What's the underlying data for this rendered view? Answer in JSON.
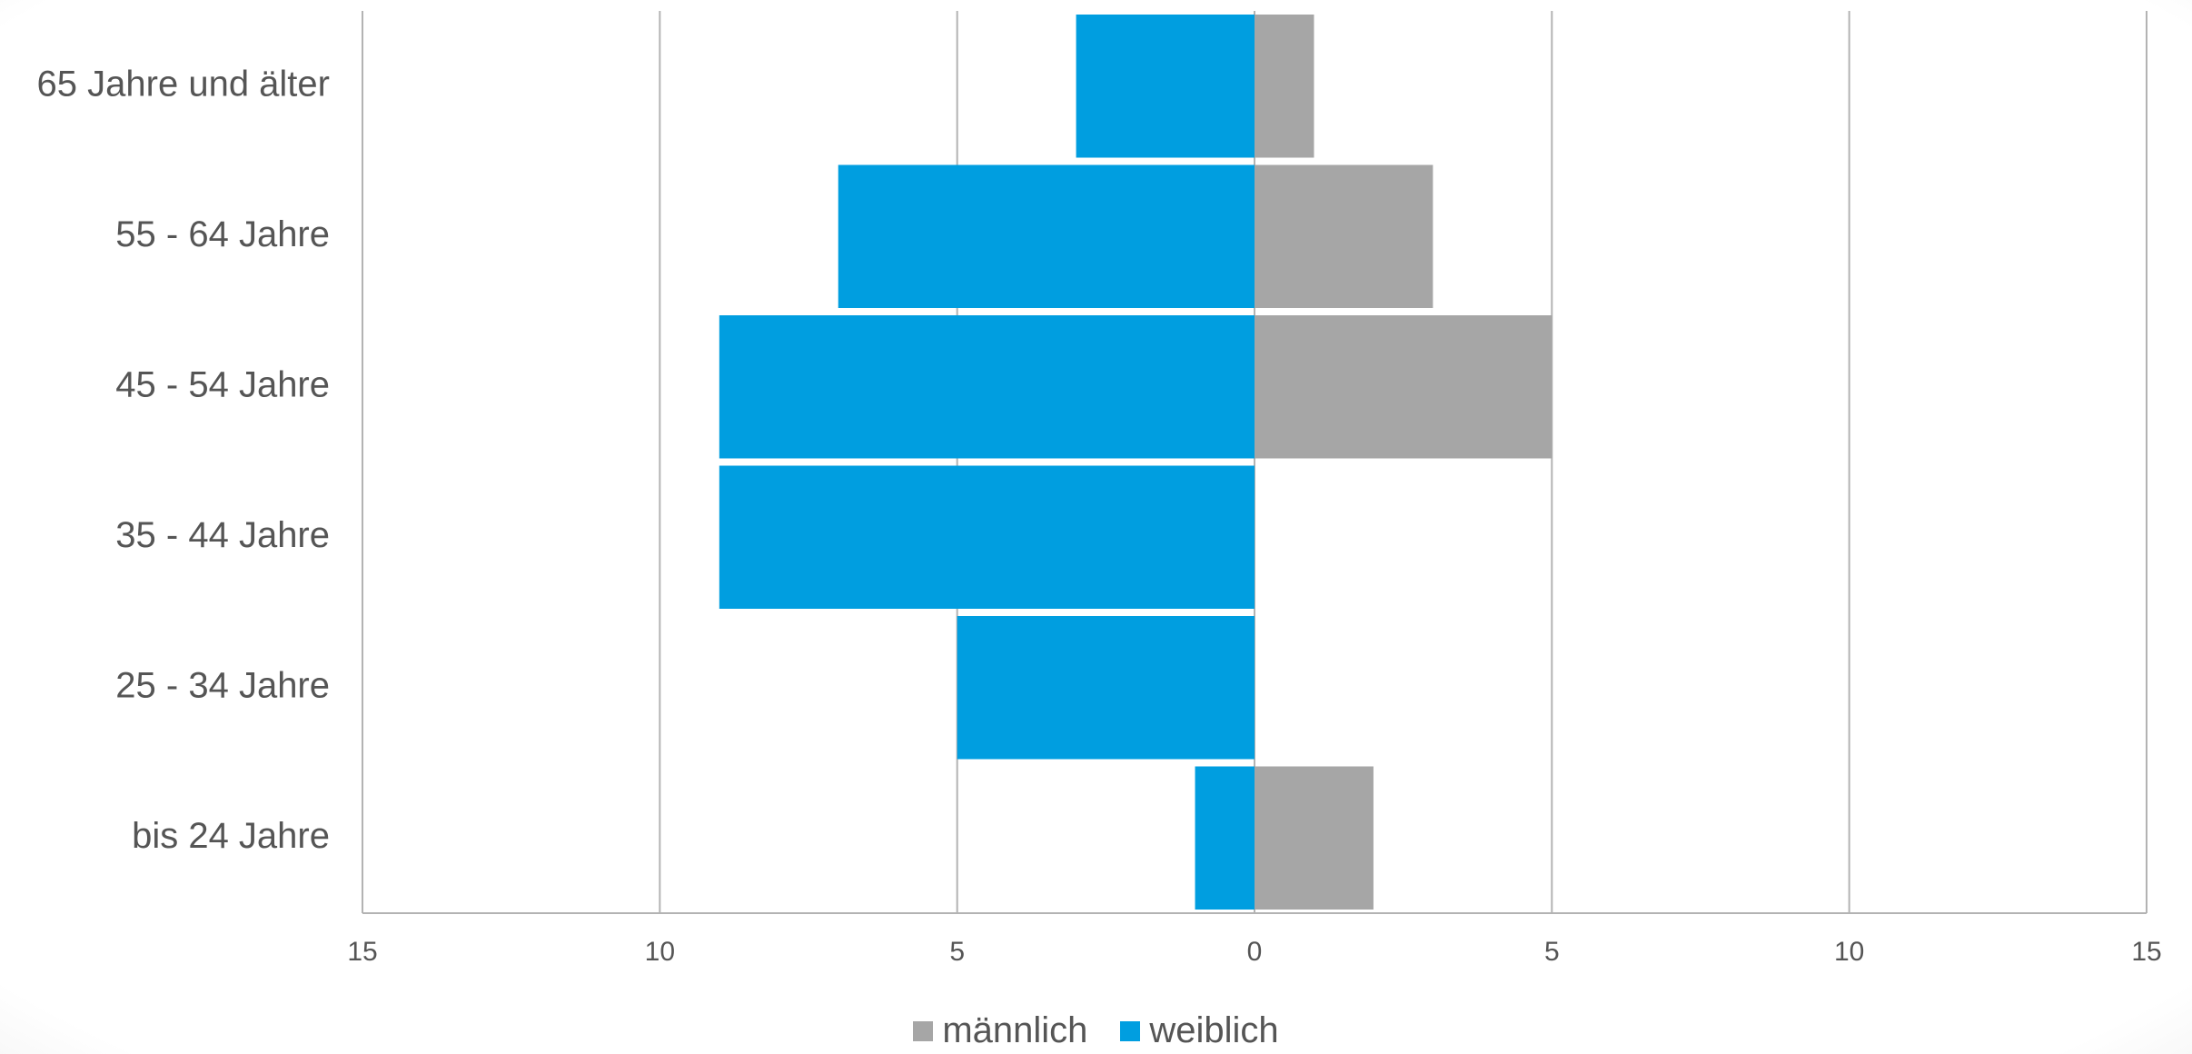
{
  "chart_data": {
    "type": "bar",
    "orientation": "horizontal",
    "layout": "population-pyramid",
    "categories": [
      "bis 24 Jahre",
      "25 - 34 Jahre",
      "35 - 44 Jahre",
      "45 - 54 Jahre",
      "55 - 64 Jahre",
      "65 Jahre und älter"
    ],
    "series": [
      {
        "name": "männlich",
        "values": [
          2,
          0,
          0,
          5,
          3,
          1
        ],
        "side": "right",
        "color": "#a6a6a6"
      },
      {
        "name": "weiblich",
        "values": [
          1,
          5,
          9,
          9,
          7,
          3
        ],
        "side": "left",
        "color": "#009ee0"
      }
    ],
    "x_ticks": [
      "15",
      "10",
      "5",
      "0",
      "5",
      "10",
      "15"
    ],
    "xlim": [
      -15,
      15
    ],
    "grid": "vertical",
    "legend_position": "bottom"
  }
}
